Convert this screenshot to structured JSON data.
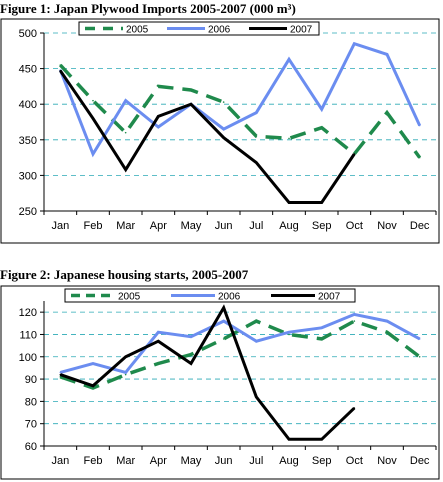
{
  "chart_data": [
    {
      "type": "line",
      "title": "Figure 1: Japan Plywood Imports 2005-2007 (000 m³)",
      "categories": [
        "Jan",
        "Feb",
        "Mar",
        "Apr",
        "May",
        "Jun",
        "Jul",
        "Aug",
        "Sep",
        "Oct",
        "Nov",
        "Dec"
      ],
      "ylim": [
        250,
        500
      ],
      "yticks": [
        250,
        300,
        350,
        400,
        450,
        500
      ],
      "grid": true,
      "legend": "top",
      "series": [
        {
          "name": "2005",
          "color": "#1f8a4c",
          "style": "dashed",
          "values": [
            455,
            405,
            360,
            425,
            420,
            403,
            355,
            352,
            367,
            330,
            388,
            325
          ]
        },
        {
          "name": "2006",
          "color": "#6b8df0",
          "style": "solid",
          "values": [
            448,
            330,
            405,
            368,
            400,
            365,
            388,
            463,
            393,
            485,
            470,
            370
          ]
        },
        {
          "name": "2007",
          "color": "#000000",
          "style": "solid",
          "values": [
            447,
            380,
            308,
            383,
            400,
            353,
            318,
            262,
            262,
            330,
            null,
            null
          ]
        }
      ]
    },
    {
      "type": "line",
      "title": "Figure 2: Japanese housing starts, 2005-2007",
      "categories": [
        "Jan",
        "Feb",
        "Mar",
        "Apr",
        "May",
        "Jun",
        "Jul",
        "Aug",
        "Sep",
        "Oct",
        "Nov",
        "Dec"
      ],
      "ylim": [
        60,
        125
      ],
      "yticks": [
        60,
        70,
        80,
        90,
        100,
        110,
        120
      ],
      "grid": true,
      "legend": "top",
      "series": [
        {
          "name": "2005",
          "color": "#1f8a4c",
          "style": "dashed",
          "values": [
            91,
            86,
            92,
            97,
            101,
            108,
            116,
            110,
            108,
            116,
            111,
            100
          ]
        },
        {
          "name": "2006",
          "color": "#6b8df0",
          "style": "solid",
          "values": [
            93,
            97,
            93,
            111,
            109,
            116,
            107,
            111,
            113,
            119,
            116,
            108
          ]
        },
        {
          "name": "2007",
          "color": "#000000",
          "style": "solid",
          "values": [
            92,
            87,
            100,
            107,
            97,
            122,
            82,
            63,
            63,
            77,
            null,
            null
          ]
        }
      ]
    }
  ]
}
